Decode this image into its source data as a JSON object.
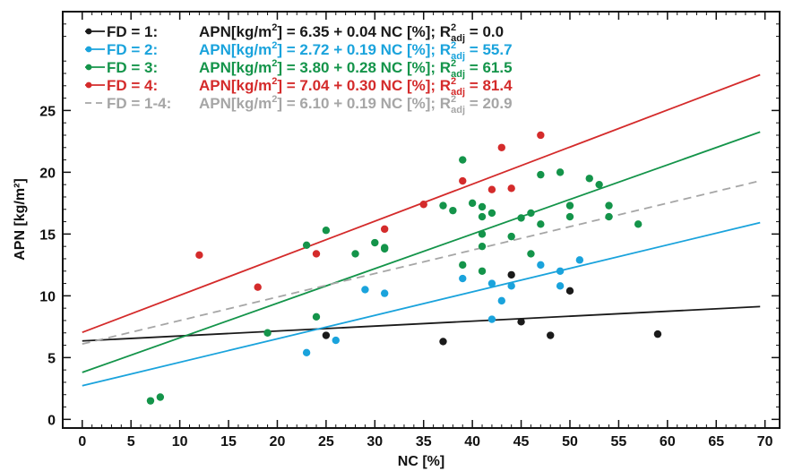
{
  "chart_data": {
    "type": "scatter",
    "xlabel": "NC [%]",
    "ylabel": "APN [kg/m²]",
    "xlim": [
      -2,
      71.5
    ],
    "ylim": [
      -0.7,
      33
    ],
    "xticks": [
      0,
      5,
      10,
      15,
      20,
      25,
      30,
      35,
      40,
      45,
      50,
      55,
      60,
      65,
      70
    ],
    "yticks": [
      0,
      5,
      10,
      15,
      20,
      25
    ],
    "grid": false,
    "legend_placement": "top-left",
    "series": [
      {
        "legend_label": "FD = 1:",
        "equation_prefix": "APN[kg/m",
        "equation_sup": "2",
        "equation_mid": "] = 6.35 + 0.04 NC [%]; R",
        "r_sup": "2",
        "r_sub": "adj",
        "r_value": " = 0.0",
        "color": "#1a1a1a",
        "dashed": false,
        "fit": {
          "intercept": 6.35,
          "slope": 0.04
        },
        "points": [
          [
            25,
            6.8
          ],
          [
            37,
            6.3
          ],
          [
            44,
            11.7
          ],
          [
            45,
            7.9
          ],
          [
            48,
            6.8
          ],
          [
            50,
            10.4
          ],
          [
            59,
            6.9
          ]
        ]
      },
      {
        "legend_label": "FD = 2:",
        "equation_prefix": "APN[kg/m",
        "equation_sup": "2",
        "equation_mid": "] = 2.72 + 0.19 NC [%]; R",
        "r_sup": "2",
        "r_sub": "adj",
        "r_value": " = 55.7",
        "color": "#1aa3dc",
        "dashed": false,
        "fit": {
          "intercept": 2.72,
          "slope": 0.19
        },
        "points": [
          [
            23,
            5.4
          ],
          [
            26,
            6.4
          ],
          [
            29,
            10.5
          ],
          [
            31,
            10.2
          ],
          [
            39,
            11.4
          ],
          [
            42,
            11.0
          ],
          [
            42,
            8.1
          ],
          [
            43,
            9.6
          ],
          [
            44,
            10.8
          ],
          [
            47,
            12.5
          ],
          [
            49,
            12.0
          ],
          [
            49,
            10.8
          ],
          [
            51,
            12.9
          ]
        ]
      },
      {
        "legend_label": "FD = 3:",
        "equation_prefix": "APN[kg/m",
        "equation_sup": "2",
        "equation_mid": "] = 3.80 + 0.28 NC [%]; R",
        "r_sup": "2",
        "r_sub": "adj",
        "r_value": " = 61.5",
        "color": "#14944a",
        "dashed": false,
        "fit": {
          "intercept": 3.8,
          "slope": 0.28
        },
        "points": [
          [
            7,
            1.5
          ],
          [
            8,
            1.8
          ],
          [
            19,
            7.0
          ],
          [
            23,
            14.1
          ],
          [
            24,
            8.3
          ],
          [
            25,
            15.3
          ],
          [
            28,
            13.4
          ],
          [
            30,
            14.3
          ],
          [
            31,
            13.8
          ],
          [
            31,
            13.9
          ],
          [
            37,
            17.3
          ],
          [
            38,
            16.9
          ],
          [
            39,
            21.0
          ],
          [
            39,
            12.5
          ],
          [
            40,
            17.5
          ],
          [
            41,
            17.2
          ],
          [
            41,
            16.4
          ],
          [
            41,
            15.0
          ],
          [
            41,
            14.0
          ],
          [
            41,
            12.0
          ],
          [
            42,
            16.7
          ],
          [
            44,
            14.8
          ],
          [
            45,
            16.3
          ],
          [
            46,
            16.7
          ],
          [
            46,
            13.4
          ],
          [
            47,
            19.8
          ],
          [
            47,
            15.8
          ],
          [
            49,
            20.0
          ],
          [
            50,
            17.3
          ],
          [
            50,
            16.4
          ],
          [
            52,
            19.5
          ],
          [
            53,
            19.0
          ],
          [
            54,
            17.3
          ],
          [
            54,
            16.4
          ],
          [
            57,
            15.8
          ]
        ]
      },
      {
        "legend_label": "FD = 4:",
        "equation_prefix": "APN[kg/m",
        "equation_sup": "2",
        "equation_mid": "] = 7.04 + 0.30 NC [%]; R",
        "r_sup": "2",
        "r_sub": "adj",
        "r_value": " = 81.4",
        "color": "#d42b2b",
        "dashed": false,
        "fit": {
          "intercept": 7.04,
          "slope": 0.3
        },
        "points": [
          [
            12,
            13.3
          ],
          [
            18,
            10.7
          ],
          [
            24,
            13.4
          ],
          [
            31,
            15.4
          ],
          [
            35,
            17.4
          ],
          [
            39,
            19.3
          ],
          [
            42,
            18.6
          ],
          [
            43,
            22.0
          ],
          [
            44,
            18.7
          ],
          [
            47,
            23.0
          ]
        ]
      },
      {
        "legend_label": "FD = 1-4:",
        "equation_prefix": "APN[kg/m",
        "equation_sup": "2",
        "equation_mid": "] = 6.10 + 0.19 NC [%]; R",
        "r_sup": "2",
        "r_sub": "adj",
        "r_value": " = 20.9",
        "color": "#a6a6a6",
        "dashed": true,
        "fit": {
          "intercept": 6.1,
          "slope": 0.19
        },
        "points": []
      }
    ]
  }
}
